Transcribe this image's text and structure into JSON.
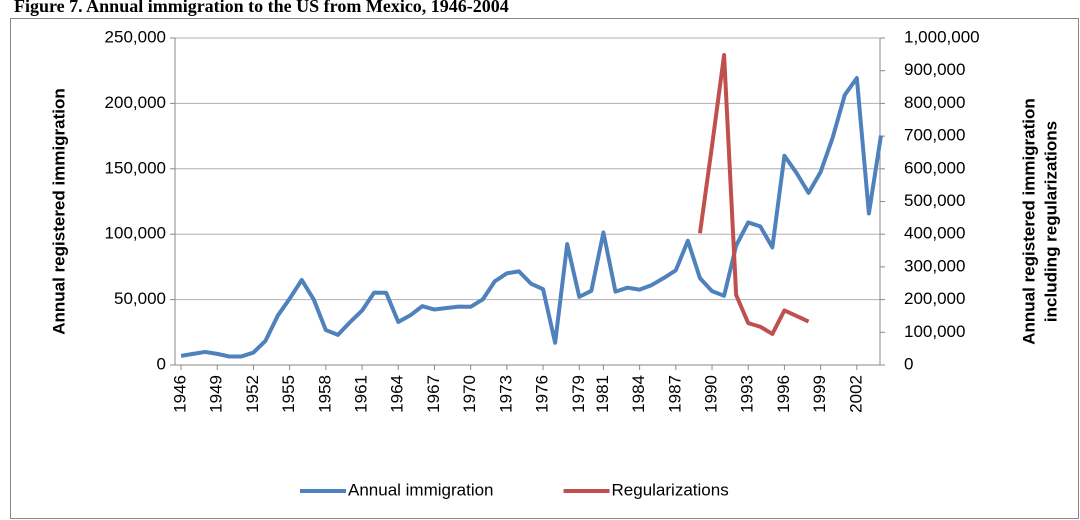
{
  "chart_data": {
    "type": "line",
    "title": "Figure 7.  Annual immigration to the US from Mexico, 1946-2004",
    "ylabel": "Annual registered immigration",
    "y2label": [
      "Annual registered immigration",
      "including  regularizations"
    ],
    "x": [
      1946,
      1947,
      1948,
      1949,
      1950,
      1951,
      1952,
      1953,
      1954,
      1955,
      1956,
      1957,
      1958,
      1959,
      1960,
      1961,
      1962,
      1963,
      1964,
      1965,
      1966,
      1967,
      1968,
      1969,
      1970,
      1971,
      1972,
      1973,
      1974,
      1975,
      1976,
      1977,
      1978,
      1979,
      1980,
      1981,
      1982,
      1983,
      1984,
      1985,
      1986,
      1987,
      1988,
      1989,
      1990,
      1991,
      1992,
      1993,
      1994,
      1995,
      1996,
      1997,
      1998,
      1999,
      2000,
      2001,
      2002,
      2003,
      2004
    ],
    "xlim": [
      1945.5,
      2004.5
    ],
    "xticks": [
      1946,
      1949,
      1952,
      1955,
      1958,
      1961,
      1964,
      1967,
      1970,
      1973,
      1976,
      1979,
      1981,
      1984,
      1987,
      1990,
      1993,
      1996,
      1999,
      2002
    ],
    "ylim": [
      0,
      250000
    ],
    "yticks": [
      0,
      {
        "value": 50000,
        "label": "50,000"
      },
      {
        "value": 100000,
        "label": "100,000"
      },
      {
        "value": 150000,
        "label": "150,000"
      },
      {
        "value": 200000,
        "label": "200,000"
      },
      {
        "value": 250000,
        "label": "250,000"
      }
    ],
    "y2lim": [
      0,
      1000000
    ],
    "y2ticks": [
      0,
      {
        "value": 100000,
        "label": "100,000"
      },
      {
        "value": 200000,
        "label": "200,000"
      },
      {
        "value": 300000,
        "label": "300,000"
      },
      {
        "value": 400000,
        "label": "400,000"
      },
      {
        "value": 500000,
        "label": "500,000"
      },
      {
        "value": 600000,
        "label": "600,000"
      },
      {
        "value": 700000,
        "label": "700,000"
      },
      {
        "value": 800000,
        "label": "800,000"
      },
      {
        "value": 900000,
        "label": "900,000"
      },
      {
        "value": 1000000,
        "label": "1,000,000"
      }
    ],
    "grid": true,
    "legend": "bottom",
    "series": [
      {
        "name": "Annual immigration",
        "color": "#4f81bd",
        "values": [
          7000,
          8500,
          10000,
          8500,
          6500,
          6500,
          9500,
          18500,
          37500,
          50700,
          65000,
          50000,
          26700,
          23000,
          32700,
          41600,
          55300,
          55200,
          32900,
          38000,
          45000,
          42400,
          43600,
          44600,
          44500,
          50100,
          64000,
          70100,
          71600,
          62200,
          58000,
          17000,
          92400,
          52100,
          56700,
          101300,
          56100,
          59100,
          57600,
          61100,
          66500,
          72400,
          95000,
          66400,
          56500,
          52900,
          91300,
          109000,
          106000,
          89900,
          160000,
          146900,
          131600,
          147600,
          173900,
          206400,
          219400,
          115900,
          175400
        ]
      },
      {
        "name": "Regularizations",
        "color": "#c0504d",
        "axis": "y2",
        "values": [
          null,
          null,
          null,
          null,
          null,
          null,
          null,
          null,
          null,
          null,
          null,
          null,
          null,
          null,
          null,
          null,
          null,
          null,
          null,
          null,
          null,
          null,
          null,
          null,
          null,
          null,
          null,
          null,
          null,
          null,
          null,
          null,
          null,
          null,
          null,
          null,
          null,
          null,
          null,
          null,
          null,
          null,
          null,
          403000,
          670000,
          948000,
          214000,
          128000,
          117000,
          95000,
          167000,
          150000,
          133000,
          null,
          null,
          null,
          null,
          null,
          null
        ]
      }
    ]
  }
}
